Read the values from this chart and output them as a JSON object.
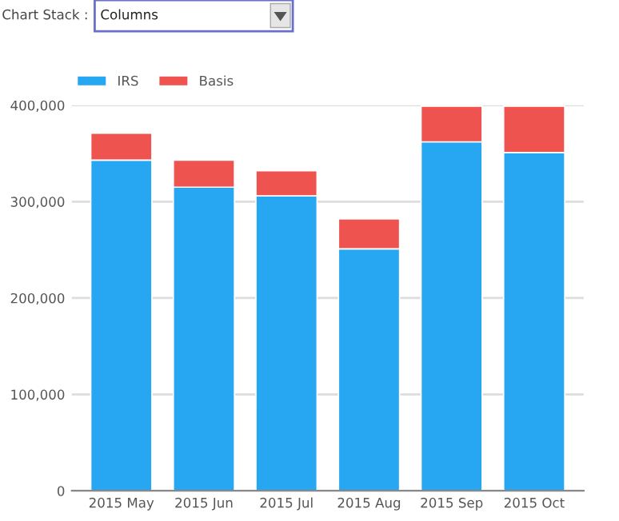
{
  "chart_data": {
    "type": "bar",
    "stacked": true,
    "categories": [
      "2015 May",
      "2015 Jun",
      "2015 Jul",
      "2015 Aug",
      "2015 Sep",
      "2015 Oct"
    ],
    "series": [
      {
        "name": "IRS",
        "color": "#27a6f2",
        "values": [
          343000,
          315000,
          306000,
          251000,
          362000,
          351000
        ]
      },
      {
        "name": "Basis",
        "color": "#ef5350",
        "values": [
          28000,
          28000,
          26000,
          31000,
          37000,
          48000
        ]
      }
    ],
    "ylim": [
      0,
      400000
    ],
    "yticks": [
      {
        "value": 0,
        "label": "0"
      },
      {
        "value": 100000,
        "label": "100,000"
      },
      {
        "value": 200000,
        "label": "200,000"
      },
      {
        "value": 300000,
        "label": "300,000"
      },
      {
        "value": 400000,
        "label": "400,000"
      }
    ],
    "grid": "y",
    "legend": "top left",
    "annotations": [
      "Chart Stack :",
      "Columns"
    ]
  }
}
